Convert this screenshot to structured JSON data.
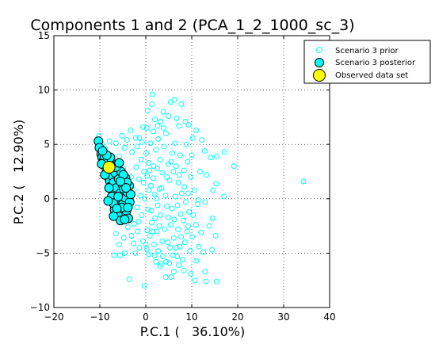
{
  "chart_data": {
    "type": "scatter",
    "title": "Components 1 and 2 (PCA_1_2_1000_sc_3)",
    "xlabel": "P.C.1 (   36.10%)",
    "ylabel": "P.C.2 (   12.90%)",
    "xlim": [
      -20,
      40
    ],
    "ylim": [
      -10,
      15
    ],
    "xticks": [
      -20,
      -10,
      0,
      10,
      20,
      30,
      40
    ],
    "yticks": [
      -10,
      -5,
      0,
      5,
      10,
      15
    ],
    "grid": true,
    "legend_position": "top-right",
    "colors": {
      "prior": "#00ffff",
      "posterior": "#00ffff",
      "observed": "#ffff00",
      "edge": "#000000"
    },
    "series": [
      {
        "name": "Scenario 3 prior",
        "marker": "open-circle-small",
        "points": [
          [
            -10.2,
            5.8
          ],
          [
            -9.5,
            5.0
          ],
          [
            -8.8,
            4.6
          ],
          [
            -7.9,
            5.3
          ],
          [
            -6.5,
            5.1
          ],
          [
            -5.2,
            5.8
          ],
          [
            -4.6,
            4.7
          ],
          [
            -4.1,
            5.4
          ],
          [
            -3.3,
            6.3
          ],
          [
            -2.2,
            5.6
          ],
          [
            -1.4,
            5.6
          ],
          [
            -0.6,
            6.6
          ],
          [
            0.4,
            8.1
          ],
          [
            1.3,
            8.7
          ],
          [
            1.4,
            9.6
          ],
          [
            2.0,
            7.3
          ],
          [
            2.6,
            6.7
          ],
          [
            3.2,
            7.1
          ],
          [
            3.8,
            8.0
          ],
          [
            4.4,
            6.0
          ],
          [
            4.9,
            7.6
          ],
          [
            5.4,
            8.9
          ],
          [
            6.2,
            9.1
          ],
          [
            6.7,
            7.4
          ],
          [
            7.2,
            6.7
          ],
          [
            7.7,
            8.7
          ],
          [
            8.6,
            7.1
          ],
          [
            9.3,
            6.8
          ],
          [
            10.2,
            5.6
          ],
          [
            11.0,
            6.3
          ],
          [
            12.2,
            5.4
          ],
          [
            12.8,
            4.4
          ],
          [
            14.1,
            3.8
          ],
          [
            15.4,
            3.9
          ],
          [
            17.1,
            4.3
          ],
          [
            19.2,
            3.0
          ],
          [
            34.3,
            1.6
          ],
          [
            11.8,
            2.5
          ],
          [
            13.2,
            2.2
          ],
          [
            14.6,
            0.8
          ],
          [
            15.3,
            1.4
          ],
          [
            17.0,
            0.2
          ],
          [
            12.9,
            -0.3
          ],
          [
            11.3,
            -0.5
          ],
          [
            10.3,
            -1.5
          ],
          [
            9.2,
            -2.5
          ],
          [
            8.2,
            -2.0
          ],
          [
            14.5,
            -1.8
          ],
          [
            13.8,
            -2.5
          ],
          [
            15.2,
            -3.4
          ],
          [
            12.5,
            -4.9
          ],
          [
            14.4,
            -4.7
          ],
          [
            11.0,
            -5.7
          ],
          [
            12.9,
            -6.7
          ],
          [
            13.1,
            -7.6
          ],
          [
            15.4,
            -7.6
          ],
          [
            10.7,
            -7.5
          ],
          [
            9.8,
            -6.9
          ],
          [
            8.3,
            -6.6
          ],
          [
            7.2,
            -6.1
          ],
          [
            6.1,
            -6.7
          ],
          [
            5.5,
            -7.2
          ],
          [
            4.3,
            -7.2
          ],
          [
            3.1,
            -6.2
          ],
          [
            1.9,
            -5.2
          ],
          [
            0.6,
            -5.1
          ],
          [
            -0.3,
            -8.0
          ],
          [
            -2.3,
            -5.0
          ],
          [
            -3.6,
            -7.4
          ],
          [
            -4.6,
            -5.0
          ],
          [
            -5.8,
            -4.2
          ],
          [
            -6.9,
            -5.2
          ],
          [
            -5.6,
            -5.2
          ],
          [
            -6.5,
            -3.2
          ],
          [
            -4.8,
            -3.6
          ],
          [
            -3.9,
            -2.6
          ],
          [
            -3.1,
            -3.4
          ],
          [
            -1.6,
            -2.1
          ],
          [
            -0.6,
            -3.9
          ],
          [
            0.2,
            -4.6
          ],
          [
            0.9,
            -3.4
          ],
          [
            1.8,
            -4.2
          ],
          [
            2.7,
            -4.8
          ],
          [
            3.6,
            -3.9
          ],
          [
            4.4,
            -5.8
          ],
          [
            5.3,
            -4.5
          ],
          [
            6.1,
            -3.6
          ],
          [
            6.8,
            -5.3
          ],
          [
            7.7,
            -3.5
          ],
          [
            8.5,
            -4.0
          ],
          [
            9.0,
            -3.0
          ],
          [
            10.1,
            -3.5
          ],
          [
            9.4,
            -1.2
          ],
          [
            8.7,
            -0.3
          ],
          [
            7.8,
            0.5
          ],
          [
            7.1,
            1.5
          ],
          [
            6.4,
            0.2
          ],
          [
            5.7,
            -0.9
          ],
          [
            4.9,
            -1.7
          ],
          [
            4.1,
            -2.8
          ],
          [
            3.2,
            -1.5
          ],
          [
            2.6,
            -0.6
          ],
          [
            1.9,
            0.4
          ],
          [
            1.1,
            1.2
          ],
          [
            0.3,
            2.1
          ],
          [
            -0.5,
            1.5
          ],
          [
            -1.2,
            0.3
          ],
          [
            -1.9,
            -0.8
          ],
          [
            -2.6,
            0.8
          ],
          [
            -3.2,
            2.0
          ],
          [
            -2.1,
            2.9
          ],
          [
            -1.0,
            3.6
          ],
          [
            0.1,
            4.2
          ],
          [
            1.0,
            5.1
          ],
          [
            2.2,
            4.5
          ],
          [
            3.1,
            3.6
          ],
          [
            4.0,
            4.8
          ],
          [
            4.9,
            3.2
          ],
          [
            5.8,
            4.2
          ],
          [
            6.6,
            3.0
          ],
          [
            7.5,
            4.0
          ],
          [
            8.3,
            2.6
          ],
          [
            9.1,
            3.4
          ],
          [
            9.8,
            2.0
          ],
          [
            10.6,
            0.8
          ],
          [
            11.4,
            -0.1
          ],
          [
            10.9,
            -2.4
          ],
          [
            12.0,
            -3.1
          ],
          [
            11.5,
            -4.4
          ],
          [
            9.6,
            -4.8
          ],
          [
            8.0,
            -5.6
          ],
          [
            6.6,
            -4.5
          ],
          [
            5.1,
            -5.9
          ],
          [
            3.7,
            -5.3
          ],
          [
            2.4,
            -3.0
          ],
          [
            1.3,
            -2.2
          ],
          [
            0.5,
            -1.0
          ],
          [
            -0.2,
            0.0
          ],
          [
            0.7,
            0.8
          ],
          [
            1.6,
            1.9
          ],
          [
            2.5,
            2.8
          ],
          [
            3.4,
            1.0
          ],
          [
            4.3,
            0.3
          ],
          [
            5.2,
            1.7
          ],
          [
            6.0,
            2.5
          ],
          [
            6.9,
            -0.6
          ],
          [
            7.6,
            -1.4
          ],
          [
            8.4,
            1.1
          ],
          [
            9.2,
            0.5
          ],
          [
            2.0,
            -1.8
          ],
          [
            2.9,
            -2.5
          ],
          [
            1.5,
            -3.0
          ],
          [
            0.3,
            -2.9
          ],
          [
            -0.9,
            -1.5
          ],
          [
            -1.8,
            -3.0
          ],
          [
            -2.7,
            -4.1
          ],
          [
            -3.5,
            -0.3
          ],
          [
            -4.2,
            1.2
          ],
          [
            -4.9,
            2.8
          ],
          [
            -5.7,
            3.9
          ],
          [
            -6.4,
            2.2
          ],
          [
            -7.1,
            1.0
          ],
          [
            -7.8,
            -0.2
          ],
          [
            -8.4,
            1.7
          ],
          [
            -9.0,
            3.0
          ],
          [
            -3.0,
            4.3
          ],
          [
            -1.9,
            4.8
          ],
          [
            -0.8,
            5.2
          ],
          [
            0.6,
            3.3
          ],
          [
            1.7,
            3.0
          ],
          [
            3.6,
            2.4
          ],
          [
            4.6,
            2.0
          ],
          [
            5.5,
            3.4
          ],
          [
            6.3,
            5.1
          ],
          [
            7.3,
            2.2
          ],
          [
            8.8,
            5.0
          ],
          [
            10.0,
            4.0
          ],
          [
            2.2,
            -5.8
          ],
          [
            3.3,
            -6.0
          ],
          [
            4.8,
            -4.0
          ],
          [
            5.9,
            -5.2
          ],
          [
            7.4,
            -4.4
          ],
          [
            0.0,
            -4.2
          ],
          [
            -1.4,
            -4.5
          ],
          [
            -2.5,
            -2.3
          ],
          [
            -3.8,
            -1.2
          ],
          [
            -4.4,
            -2.0
          ],
          [
            1.2,
            -1.1
          ],
          [
            2.3,
            0.0
          ],
          [
            3.0,
            0.9
          ],
          [
            4.6,
            -0.7
          ],
          [
            5.4,
            -2.4
          ],
          [
            6.2,
            -1.9
          ],
          [
            7.0,
            -2.8
          ],
          [
            0.8,
            2.6
          ],
          [
            -0.4,
            2.5
          ],
          [
            -1.5,
            1.8
          ],
          [
            2.7,
            5.5
          ],
          [
            3.9,
            6.5
          ],
          [
            1.6,
            6.2
          ],
          [
            0.2,
            6.5
          ]
        ]
      },
      {
        "name": "Scenario 3 posterior",
        "marker": "filled-circle-large",
        "points": [
          [
            -10.3,
            5.3
          ],
          [
            -10.1,
            4.7
          ],
          [
            -9.7,
            4.1
          ],
          [
            -9.5,
            3.8
          ],
          [
            -9.2,
            3.5
          ],
          [
            -9.0,
            3.9
          ],
          [
            -8.8,
            3.2
          ],
          [
            -8.6,
            2.8
          ],
          [
            -8.4,
            3.5
          ],
          [
            -8.3,
            2.4
          ],
          [
            -8.1,
            2.0
          ],
          [
            -7.9,
            2.6
          ],
          [
            -7.8,
            1.6
          ],
          [
            -7.6,
            3.0
          ],
          [
            -7.5,
            1.2
          ],
          [
            -7.3,
            2.1
          ],
          [
            -7.2,
            0.8
          ],
          [
            -7.0,
            1.5
          ],
          [
            -6.9,
            0.4
          ],
          [
            -6.7,
            2.4
          ],
          [
            -6.6,
            0.0
          ],
          [
            -6.4,
            1.0
          ],
          [
            -6.3,
            -0.3
          ],
          [
            -6.2,
            3.2
          ],
          [
            -6.0,
            -0.7
          ],
          [
            -5.9,
            1.8
          ],
          [
            -5.7,
            -1.0
          ],
          [
            -5.6,
            0.5
          ],
          [
            -5.4,
            2.5
          ],
          [
            -5.3,
            -1.3
          ],
          [
            -5.1,
            1.3
          ],
          [
            -5.0,
            -0.5
          ],
          [
            -4.8,
            0.9
          ],
          [
            -4.7,
            -1.6
          ],
          [
            -4.5,
            0.1
          ],
          [
            -4.4,
            1.9
          ],
          [
            -4.2,
            -1.1
          ],
          [
            -4.0,
            0.6
          ],
          [
            -3.8,
            -1.8
          ],
          [
            -3.6,
            1.2
          ],
          [
            -3.5,
            -0.3
          ],
          [
            -3.3,
            0.4
          ],
          [
            -6.8,
            -1.0
          ],
          [
            -7.4,
            0.2
          ],
          [
            -8.0,
            1.0
          ],
          [
            -6.1,
            -1.5
          ],
          [
            -5.5,
            -2.0
          ],
          [
            -7.7,
            3.8
          ],
          [
            -8.5,
            4.0
          ],
          [
            -9.4,
            4.4
          ],
          [
            -6.5,
            2.9
          ],
          [
            -4.9,
            2.2
          ],
          [
            -4.1,
            1.5
          ],
          [
            -5.8,
            3.3
          ],
          [
            -7.1,
            -0.4
          ],
          [
            -6.0,
            0.2
          ],
          [
            -5.2,
            -0.8
          ],
          [
            -4.6,
            -1.9
          ],
          [
            -3.9,
            -0.8
          ],
          [
            -8.9,
            2.2
          ],
          [
            -9.6,
            3.2
          ],
          [
            -8.2,
            -0.2
          ],
          [
            -7.0,
            -1.6
          ],
          [
            -6.3,
            -0.9
          ],
          [
            -5.5,
            1.6
          ],
          [
            -4.3,
            1.0
          ]
        ]
      },
      {
        "name": "Observed data set",
        "marker": "filled-circle-xlarge",
        "points": [
          [
            -8.0,
            2.9
          ]
        ]
      }
    ]
  }
}
